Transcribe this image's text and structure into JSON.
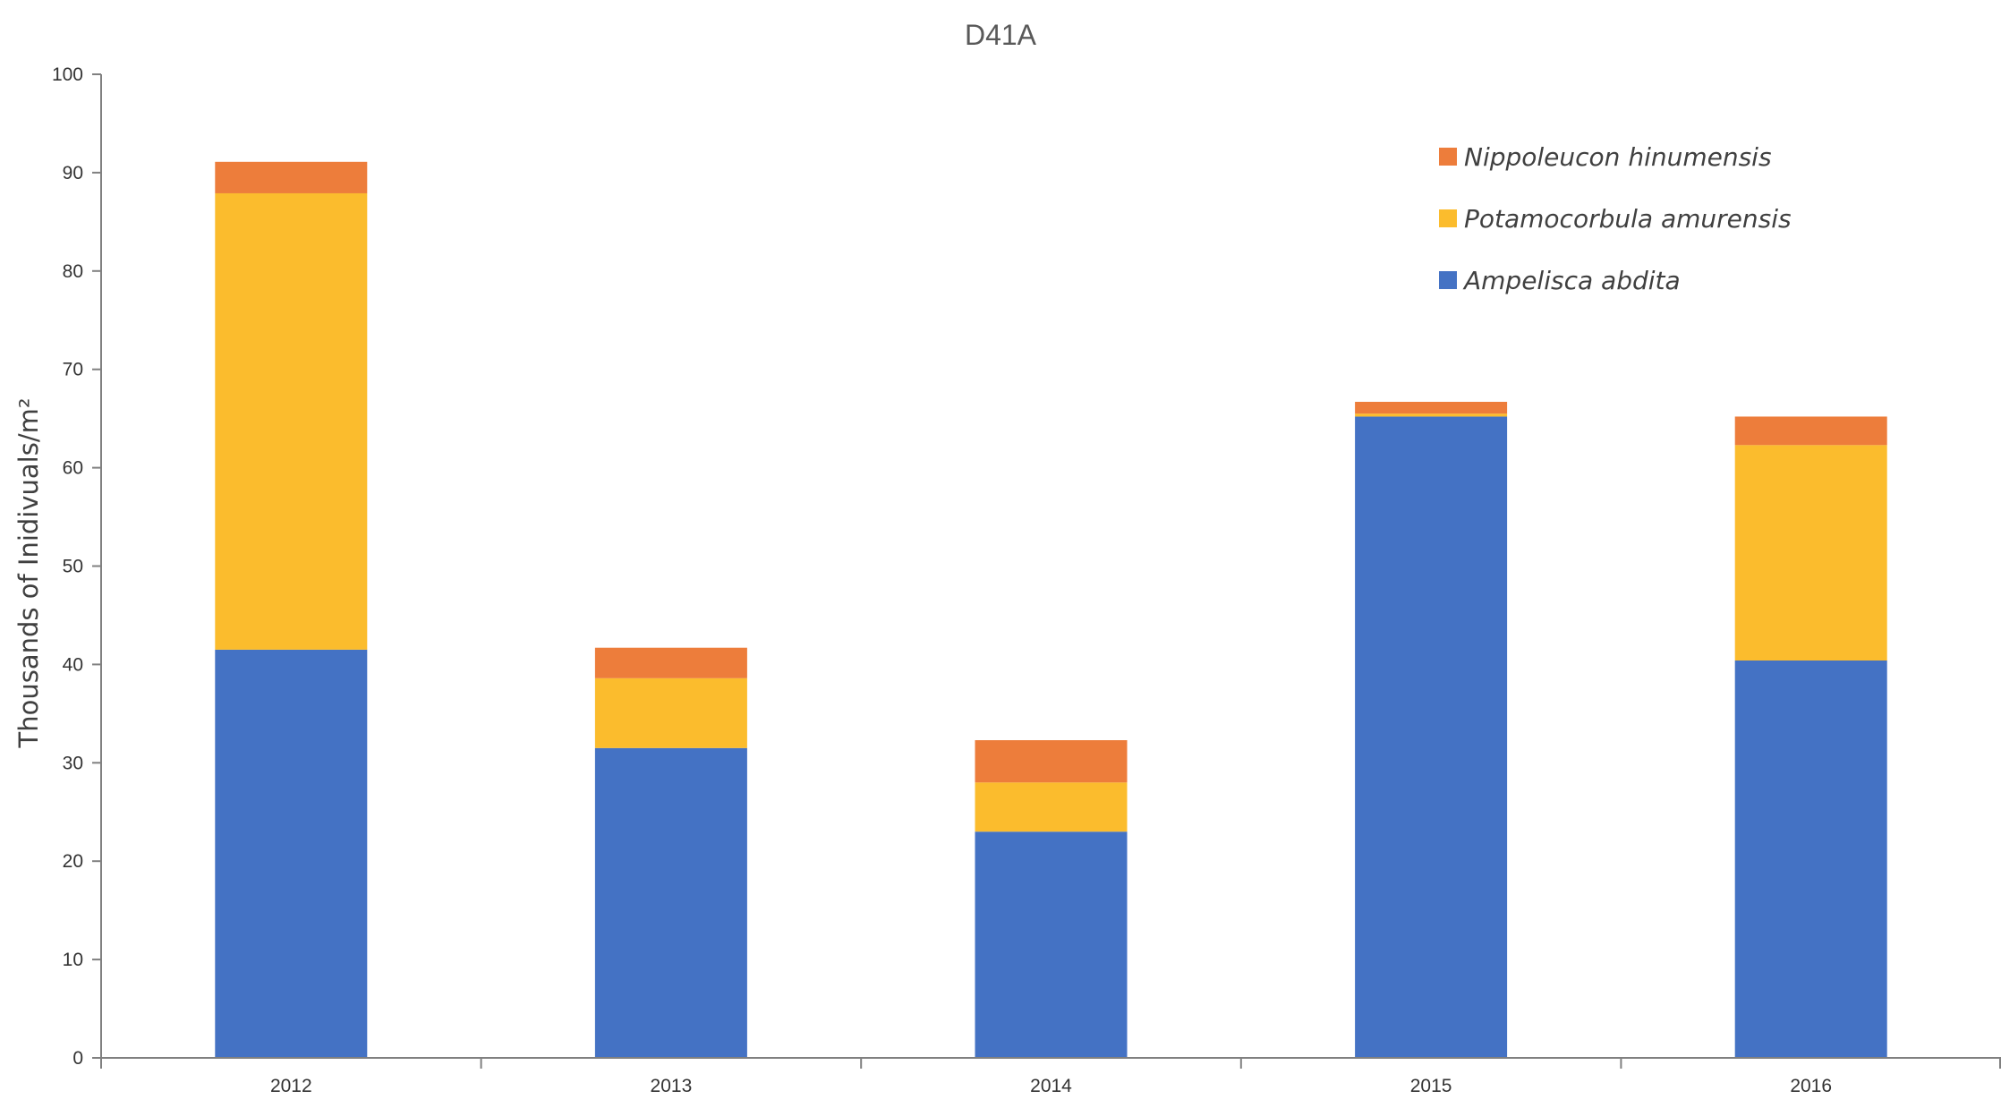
{
  "chart_data": {
    "type": "bar",
    "stacked": true,
    "title": "D41A",
    "xlabel": "",
    "ylabel": "Thousands of Inidivuals/m²",
    "categories": [
      "2012",
      "2013",
      "2014",
      "2015",
      "2016"
    ],
    "ylim": [
      0,
      100
    ],
    "yticks": [
      0,
      10,
      20,
      30,
      40,
      50,
      60,
      70,
      80,
      90,
      100
    ],
    "grid": false,
    "legend_position": "top-right",
    "series": [
      {
        "name": "Ampelisca abdita",
        "color": "#4472C4",
        "values": [
          41.5,
          31.5,
          23.0,
          65.2,
          40.4
        ]
      },
      {
        "name": "Potamocorbula amurensis",
        "color": "#FBBC2D",
        "values": [
          46.4,
          7.1,
          5.0,
          0.3,
          21.9
        ]
      },
      {
        "name": "Nippoleucon hinumensis",
        "color": "#ED7D3B",
        "values": [
          3.2,
          3.1,
          4.3,
          1.2,
          2.9
        ]
      }
    ]
  }
}
